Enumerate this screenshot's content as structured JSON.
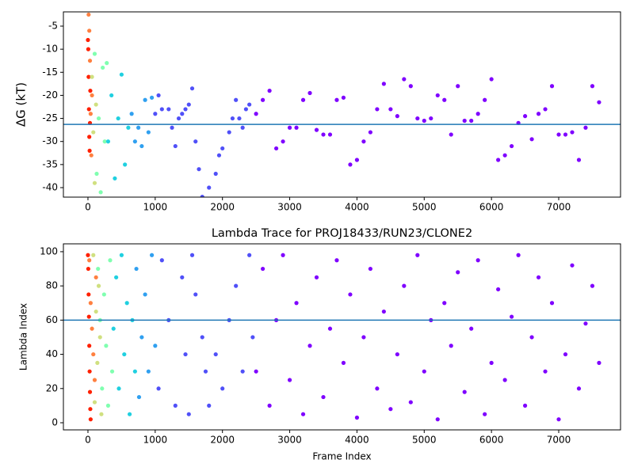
{
  "chart_data": [
    {
      "type": "scatter",
      "ylabel": "ΔG (kT)",
      "xlim": [
        -365,
        7919
      ],
      "ylim": [
        -42.06,
        -1.91
      ],
      "xticks": [
        0,
        1000,
        2000,
        3000,
        4000,
        5000,
        6000,
        7000
      ],
      "yticks": [
        -40,
        -35,
        -30,
        -25,
        -20,
        -15,
        -10,
        -5
      ],
      "hline": -26.3,
      "hline_color": "#1f77b4",
      "series": [
        {
          "color": "#ff2000",
          "x": [
            0,
            5,
            10,
            15,
            20,
            25,
            30,
            35
          ],
          "values": [
            -8,
            -10,
            -16,
            -23,
            -29,
            -32,
            -26,
            -19
          ]
        },
        {
          "color": "#ff8040",
          "x": [
            10,
            20,
            30,
            40,
            50,
            60
          ],
          "values": [
            -2.5,
            -6,
            -12.5,
            -24,
            -33,
            -20
          ]
        },
        {
          "color": "#d0e080",
          "x": [
            60,
            80,
            100,
            120
          ],
          "values": [
            -16,
            -28,
            -39,
            -22
          ]
        },
        {
          "color": "#80ffb0",
          "x": [
            100,
            130,
            160,
            190,
            220,
            250,
            280
          ],
          "values": [
            -11,
            -37,
            -25,
            -41,
            -14,
            -30,
            -13
          ]
        },
        {
          "color": "#20d0e0",
          "x": [
            300,
            350,
            400,
            450,
            500,
            550,
            600
          ],
          "values": [
            -30,
            -20,
            -38,
            -25,
            -15.5,
            -35,
            -27
          ]
        },
        {
          "color": "#30a0f0",
          "x": [
            650,
            700,
            750,
            800,
            850,
            900,
            950
          ],
          "values": [
            -24,
            -30,
            -27,
            -31,
            -21,
            -28,
            -20.5
          ]
        },
        {
          "color": "#5050f8",
          "x": [
            1000,
            1050,
            1100,
            1200,
            1250,
            1300,
            1350,
            1400,
            1450,
            1500,
            1550,
            1600,
            1650,
            1700,
            1800,
            1900,
            1950,
            2000,
            2100,
            2150,
            2200,
            2250,
            2300,
            2350,
            2400
          ],
          "values": [
            -24,
            -20,
            -23,
            -23,
            -27,
            -31,
            -25,
            -24,
            -23,
            -22,
            -18.5,
            -30,
            -36,
            -42,
            -40,
            -37,
            -33,
            -31.5,
            -28,
            -25,
            -21,
            -25,
            -27,
            -23,
            -22
          ]
        },
        {
          "color": "#7f00ff",
          "x": [
            2500,
            2600,
            2700,
            2800,
            2900,
            3000,
            3100,
            3200,
            3300,
            3400,
            3500,
            3600,
            3700,
            3800,
            3900,
            4000,
            4100,
            4200,
            4300,
            4400,
            4500,
            4600,
            4700,
            4800,
            4900,
            5000,
            5100,
            5200,
            5300,
            5400,
            5500,
            5600,
            5700,
            5800,
            5900,
            6000,
            6100,
            6200,
            6300,
            6400,
            6500,
            6600,
            6700,
            6800,
            6900,
            7000,
            7100,
            7200,
            7300,
            7400,
            7500,
            7600
          ],
          "values": [
            -24,
            -21,
            -19,
            -31.5,
            -30,
            -27,
            -27,
            -21,
            -19.5,
            -27.5,
            -28.5,
            -28.5,
            -21,
            -20.5,
            -35,
            -34,
            -30,
            -28,
            -23,
            -17.5,
            -23,
            -24.5,
            -16.5,
            -18,
            -25,
            -25.5,
            -25,
            -20,
            -21,
            -28.5,
            -18,
            -25.5,
            -25.5,
            -24,
            -21,
            -16.5,
            -34,
            -33,
            -31,
            -26,
            -24.5,
            -29.5,
            -24,
            -23,
            -18,
            -28.5,
            -28.5,
            -28,
            -34,
            -27,
            -18,
            -21.5
          ]
        }
      ]
    },
    {
      "type": "scatter",
      "title": "Lambda Trace for PROJ18433/RUN23/CLONE2",
      "xlabel": "Frame Index",
      "ylabel": "Lambda Index",
      "xlim": [
        -365,
        7919
      ],
      "ylim": [
        -4.17,
        104.6
      ],
      "xticks": [
        0,
        1000,
        2000,
        3000,
        4000,
        5000,
        6000,
        7000
      ],
      "yticks": [
        0,
        20,
        40,
        60,
        80,
        100
      ],
      "hline": 60,
      "hline_color": "#1f77b4",
      "series": [
        {
          "color": "#ff2000",
          "x": [
            0,
            5,
            10,
            15,
            20,
            25,
            30,
            35,
            40
          ],
          "values": [
            98,
            90,
            75,
            62,
            45,
            30,
            18,
            8,
            2
          ]
        },
        {
          "color": "#ff8040",
          "x": [
            20,
            40,
            60,
            80,
            100,
            120
          ],
          "values": [
            95,
            70,
            55,
            40,
            25,
            85
          ]
        },
        {
          "color": "#d0e080",
          "x": [
            80,
            100,
            120,
            140,
            160,
            180,
            200
          ],
          "values": [
            98,
            12,
            65,
            35,
            80,
            50,
            5
          ]
        },
        {
          "color": "#80ffb0",
          "x": [
            150,
            180,
            210,
            240,
            270,
            300,
            330,
            360
          ],
          "values": [
            90,
            60,
            20,
            75,
            45,
            10,
            95,
            30
          ]
        },
        {
          "color": "#20d0e0",
          "x": [
            380,
            420,
            460,
            500,
            540,
            580,
            620,
            660,
            700
          ],
          "values": [
            55,
            85,
            20,
            98,
            40,
            70,
            5,
            60,
            30
          ]
        },
        {
          "color": "#30a0f0",
          "x": [
            720,
            760,
            800,
            850,
            900,
            950,
            1000
          ],
          "values": [
            90,
            15,
            50,
            75,
            30,
            98,
            45
          ]
        },
        {
          "color": "#5050f8",
          "x": [
            1050,
            1100,
            1200,
            1300,
            1400,
            1450,
            1500,
            1550,
            1600,
            1700,
            1750,
            1800,
            1900,
            2000,
            2100,
            2200,
            2300,
            2400,
            2450
          ],
          "values": [
            20,
            95,
            60,
            10,
            85,
            40,
            5,
            98,
            75,
            50,
            30,
            10,
            40,
            20,
            60,
            80,
            30,
            98,
            50
          ]
        },
        {
          "color": "#7f00ff",
          "x": [
            2500,
            2600,
            2700,
            2800,
            2900,
            3000,
            3100,
            3200,
            3300,
            3400,
            3500,
            3600,
            3700,
            3800,
            3900,
            4000,
            4100,
            4200,
            4300,
            4400,
            4500,
            4600,
            4700,
            4800,
            4900,
            5000,
            5100,
            5200,
            5300,
            5400,
            5500,
            5600,
            5700,
            5800,
            5900,
            6000,
            6100,
            6200,
            6300,
            6400,
            6500,
            6600,
            6700,
            6800,
            6900,
            7000,
            7100,
            7200,
            7300,
            7400,
            7500,
            7600
          ],
          "values": [
            30,
            90,
            10,
            60,
            98,
            25,
            70,
            5,
            45,
            85,
            15,
            55,
            95,
            35,
            75,
            3,
            50,
            90,
            20,
            65,
            8,
            40,
            80,
            12,
            98,
            30,
            60,
            2,
            70,
            45,
            88,
            18,
            55,
            95,
            5,
            35,
            78,
            25,
            62,
            98,
            10,
            50,
            85,
            30,
            70,
            2,
            40,
            92,
            20,
            58,
            80,
            35
          ]
        }
      ]
    }
  ]
}
